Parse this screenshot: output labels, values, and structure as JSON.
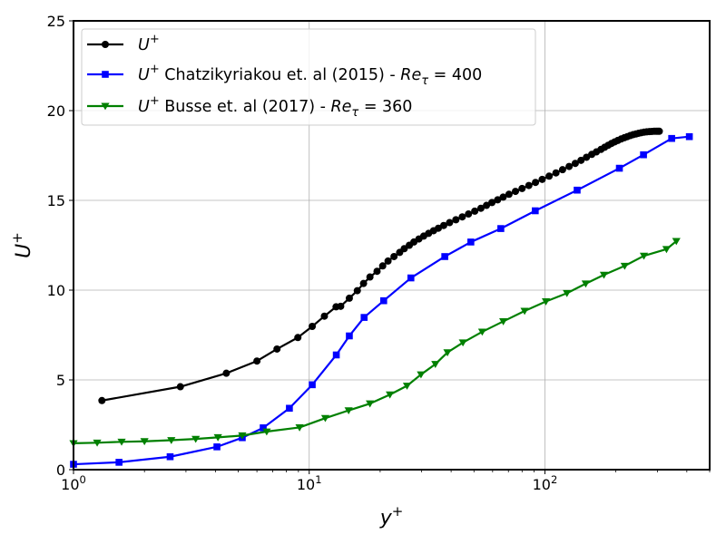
{
  "chart_data": {
    "type": "line",
    "xscale": "log",
    "xlim": [
      1,
      500
    ],
    "ylim": [
      0,
      25
    ],
    "grid": true,
    "legend_position": "top-left",
    "x_ticks": [
      {
        "value": 1,
        "base": "10",
        "exp": "0"
      },
      {
        "value": 10,
        "base": "10",
        "exp": "1"
      },
      {
        "value": 100,
        "base": "10",
        "exp": "2"
      }
    ],
    "y_ticks": [
      0,
      5,
      10,
      15,
      20,
      25
    ],
    "xlabel": {
      "main": "y",
      "sup": "+"
    },
    "ylabel": {
      "main": "U",
      "sup": "+"
    },
    "series": [
      {
        "legend": {
          "main": "U",
          "sup": "+",
          "rest": "",
          "re": "",
          "sub": "",
          "val": ""
        },
        "color": "#000000",
        "marker": "circle",
        "x": [
          1.32,
          2.84,
          4.45,
          6.0,
          7.3,
          8.95,
          10.3,
          11.6,
          13.0,
          13.6,
          14.8,
          16.0,
          17.0,
          18.1,
          19.4,
          20.5,
          21.6,
          22.9,
          24.2,
          25.3,
          26.6,
          27.8,
          29.2,
          30.6,
          32.1,
          33.7,
          35.3,
          37.2,
          39.4,
          41.9,
          44.6,
          47.4,
          50.4,
          53.5,
          56.5,
          59.6,
          63.0,
          66.5,
          70.4,
          75.0,
          80.0,
          85.5,
          91.2,
          97.4,
          104.2,
          111.4,
          118.8,
          126.7,
          134.5,
          142.3,
          150.1,
          158.0,
          165.3,
          172.9,
          179.3,
          185.6,
          191.6,
          197.8,
          203.9,
          210.5,
          217.2,
          223.7,
          230.2,
          236.6,
          243.3,
          249.9,
          256.6,
          263.4,
          270.6,
          277.7,
          284.3,
          290.9,
          296.6,
          301.4,
          305.7
        ],
        "y": [
          3.85,
          4.62,
          5.37,
          6.05,
          6.72,
          7.36,
          7.98,
          8.55,
          9.07,
          9.1,
          9.55,
          9.97,
          10.37,
          10.73,
          11.05,
          11.35,
          11.62,
          11.87,
          12.1,
          12.31,
          12.5,
          12.68,
          12.85,
          13.01,
          13.16,
          13.31,
          13.45,
          13.6,
          13.76,
          13.92,
          14.08,
          14.24,
          14.4,
          14.56,
          14.72,
          14.88,
          15.03,
          15.18,
          15.34,
          15.5,
          15.66,
          15.83,
          16.0,
          16.17,
          16.35,
          16.53,
          16.71,
          16.89,
          17.06,
          17.23,
          17.4,
          17.56,
          17.7,
          17.84,
          17.96,
          18.07,
          18.17,
          18.26,
          18.34,
          18.42,
          18.49,
          18.55,
          18.61,
          18.66,
          18.7,
          18.74,
          18.77,
          18.8,
          18.82,
          18.83,
          18.84,
          18.85,
          18.85,
          18.85,
          18.85
        ]
      },
      {
        "legend": {
          "main": "U",
          "sup": "+",
          "rest": " Chatzikyriakou et. al (2015) - ",
          "re": "Re",
          "sub": "τ",
          "val": " = 400"
        },
        "color": "#0000ff",
        "marker": "square",
        "x": [
          1.0,
          1.56,
          2.57,
          4.06,
          5.2,
          6.38,
          8.24,
          10.3,
          13.03,
          14.8,
          17.1,
          20.7,
          27.0,
          37.6,
          48.5,
          65.0,
          91.0,
          137.0,
          207.0,
          262.0,
          345.0,
          410.0
        ],
        "y": [
          0.3,
          0.41,
          0.72,
          1.27,
          1.78,
          2.33,
          3.42,
          4.73,
          6.39,
          7.45,
          8.48,
          9.41,
          10.68,
          11.87,
          12.68,
          13.43,
          14.42,
          15.57,
          16.79,
          17.54,
          18.45,
          18.55
        ]
      },
      {
        "legend": {
          "main": "U",
          "sup": "+",
          "rest": " Busse et. al (2017) - ",
          "re": "Re",
          "sub": "τ",
          "val": " = 360"
        },
        "color": "#008000",
        "marker": "triangle-down",
        "x": [
          1.0,
          1.26,
          1.6,
          2.0,
          2.6,
          3.3,
          4.1,
          5.2,
          6.6,
          9.1,
          11.7,
          14.7,
          18.1,
          22.0,
          26.0,
          29.8,
          34.3,
          38.6,
          44.9,
          54.2,
          66.6,
          82.0,
          101.0,
          124.0,
          149.0,
          178.0,
          218.0,
          263.0,
          328.0,
          361.0
        ],
        "y": [
          1.47,
          1.5,
          1.55,
          1.58,
          1.64,
          1.71,
          1.8,
          1.9,
          2.12,
          2.35,
          2.87,
          3.3,
          3.68,
          4.18,
          4.67,
          5.3,
          5.88,
          6.53,
          7.08,
          7.68,
          8.26,
          8.84,
          9.37,
          9.83,
          10.36,
          10.85,
          11.35,
          11.91,
          12.28,
          12.73
        ]
      }
    ]
  }
}
